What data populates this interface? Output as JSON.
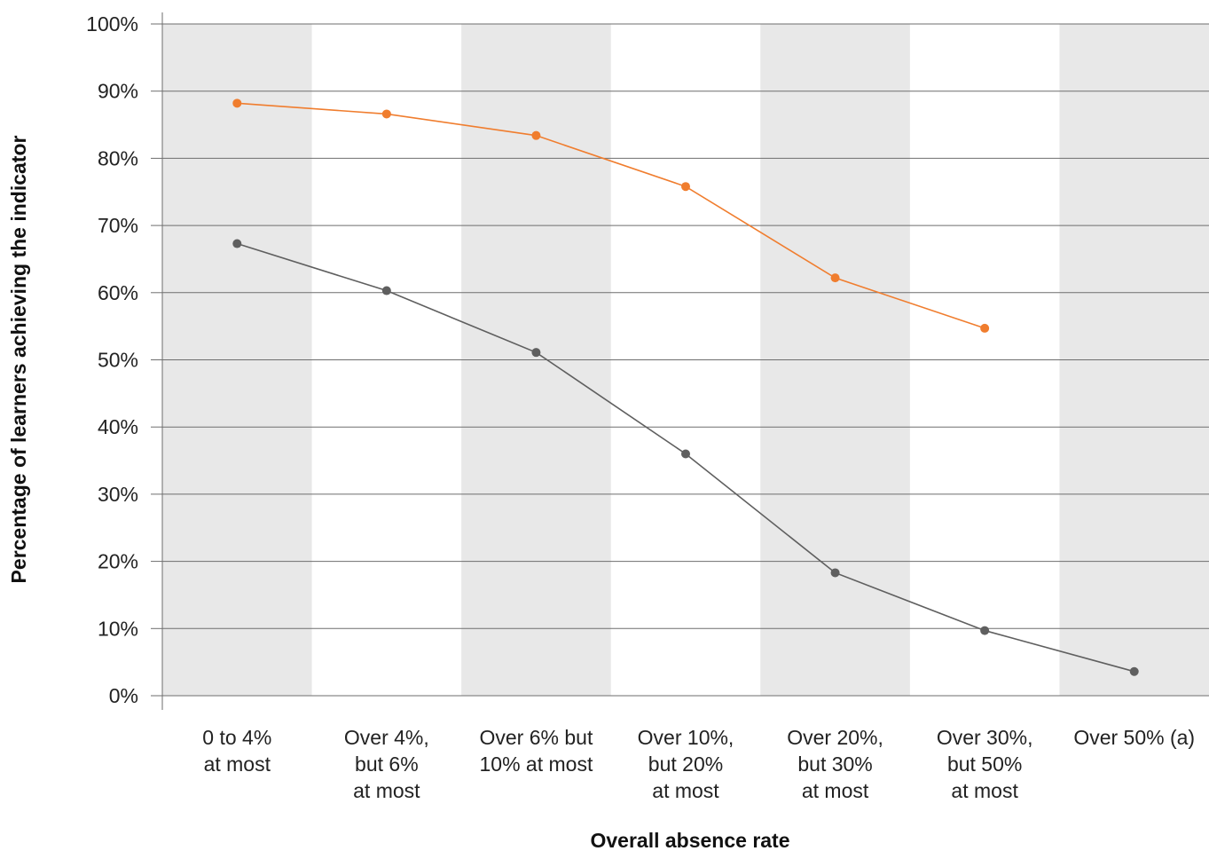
{
  "chart_data": {
    "type": "line",
    "title": "",
    "xlabel": "Overall absence rate",
    "ylabel": "Percentage of learners achieving the indicator",
    "ylim": [
      0,
      100
    ],
    "yticks": [
      "0%",
      "10%",
      "20%",
      "30%",
      "40%",
      "50%",
      "60%",
      "70%",
      "80%",
      "90%",
      "100%"
    ],
    "categories": [
      [
        "0 to 4%",
        "at most"
      ],
      [
        "Over 4%,",
        "but 6%",
        "at most"
      ],
      [
        "Over 6% but",
        "10% at most"
      ],
      [
        "Over 10%,",
        "but 20%",
        "at most"
      ],
      [
        "Over 20%,",
        "but 30%",
        "at most"
      ],
      [
        "Over 30%,",
        "but 50%",
        "at most"
      ],
      [
        "Over 50% (a)"
      ]
    ],
    "series": [
      {
        "color": "#f07d2e",
        "values": [
          88.2,
          86.6,
          83.4,
          75.8,
          62.2,
          54.7,
          null
        ]
      },
      {
        "color": "#5f5f5f",
        "values": [
          67.3,
          60.3,
          51.1,
          36.0,
          18.3,
          9.7,
          3.6
        ]
      }
    ],
    "grid": true,
    "banding": "alternating grey columns",
    "band_color": "#e8e8e8",
    "legend": "none"
  }
}
